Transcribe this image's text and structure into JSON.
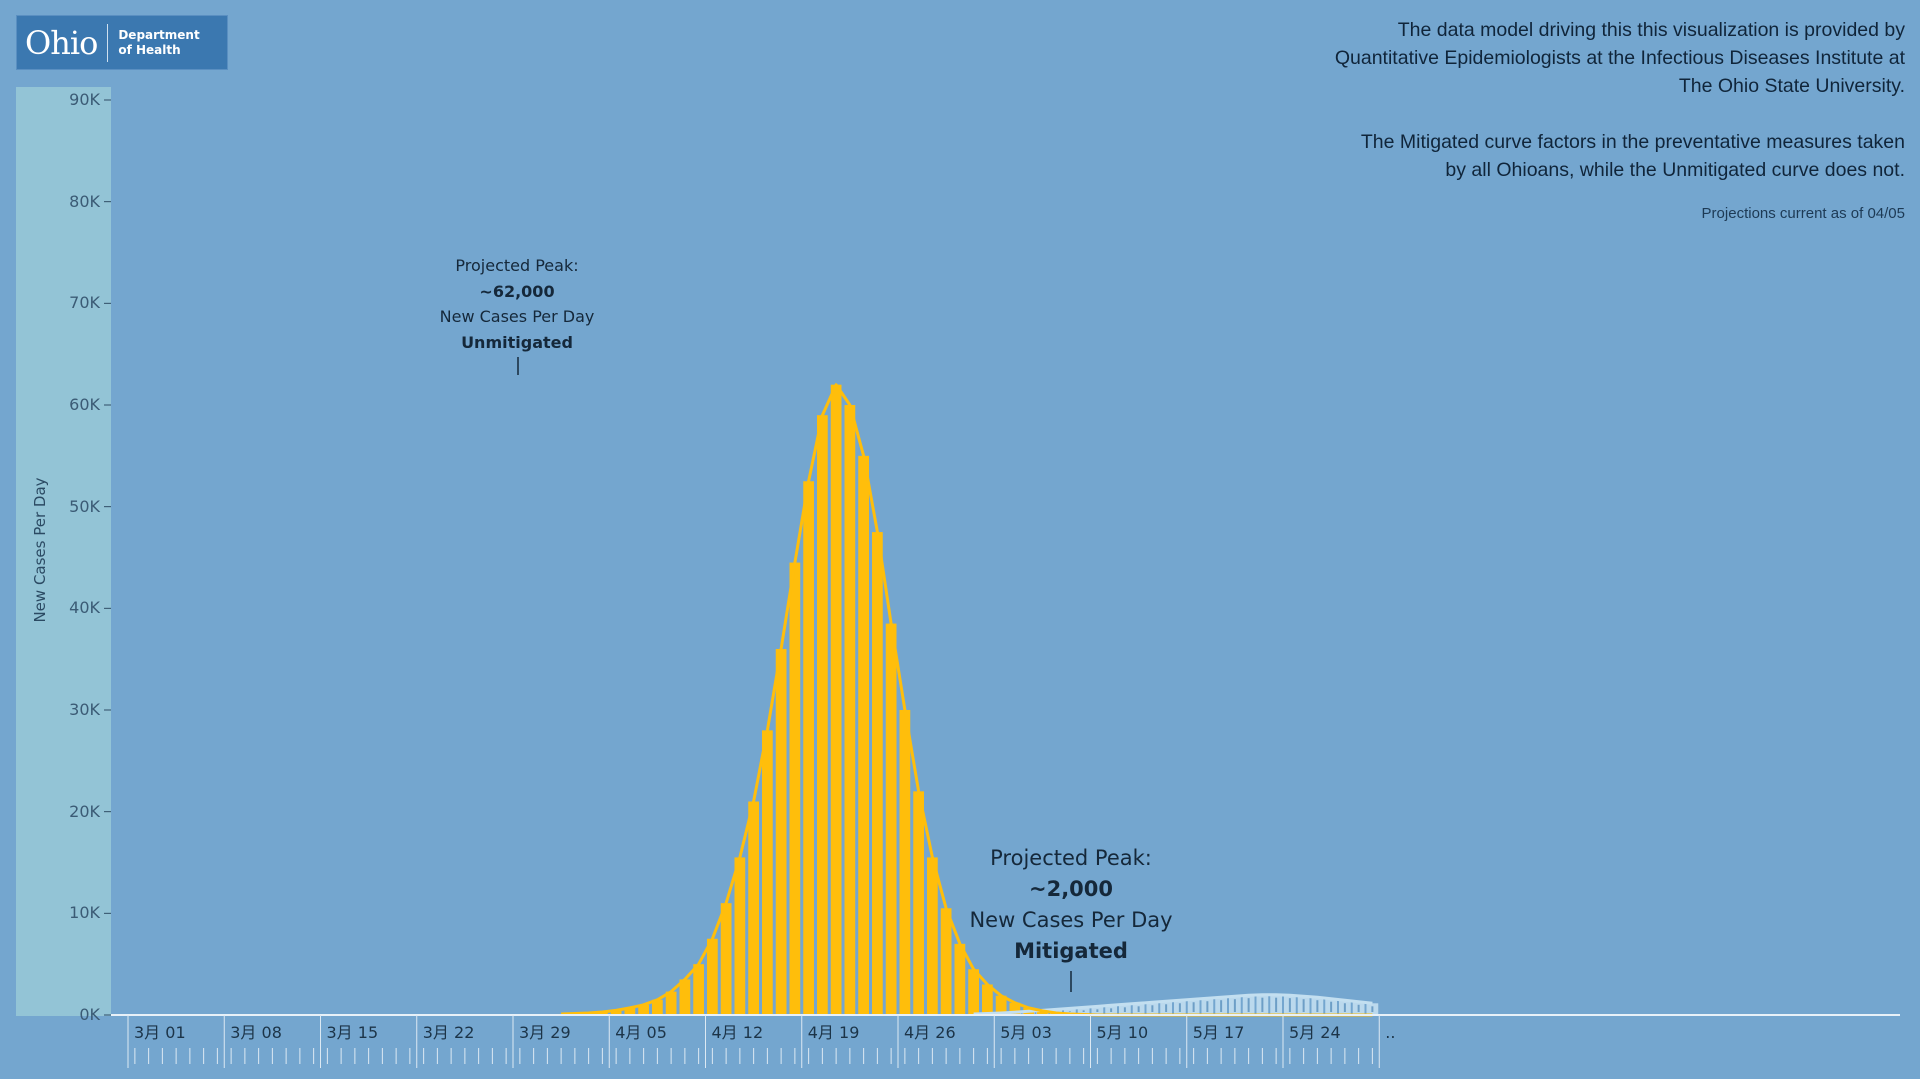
{
  "logo": {
    "word": "Ohio",
    "dept_line1": "Department",
    "dept_line2": "of Health"
  },
  "info": {
    "line1": "The data model driving this this visualization is provided by",
    "line2": "Quantitative Epidemiologists at the Infectious Diseases Institute at",
    "line3": "The Ohio State University.",
    "line4": "The Mitigated curve factors in the preventative measures taken",
    "line5": "by all Ohioans, while the Unmitigated curve does not.",
    "projections": "Projections current as of 04/05"
  },
  "annotations": {
    "unmitigated": {
      "title": "Projected Peak:",
      "value": "~62,000",
      "unit": "New Cases Per Day",
      "label": "Unmitigated"
    },
    "mitigated": {
      "title": "Projected Peak:",
      "value": "~2,000",
      "unit": "New Cases Per Day",
      "label": "Mitigated"
    }
  },
  "colors": {
    "background": "#74a6cf",
    "axis_band": "#93c4d6",
    "unmitigated": "#ffbe0b",
    "mitigated": "#c3dff0"
  },
  "chart_data": {
    "type": "bar",
    "ylabel": "New Cases Per Day",
    "ylim": [
      0,
      90000
    ],
    "yticks": [
      "0K",
      "10K",
      "20K",
      "30K",
      "40K",
      "50K",
      "60K",
      "70K",
      "80K",
      "90K"
    ],
    "xtick_labels": [
      "3月 01",
      "3月 08",
      "3月 15",
      "3月 22",
      "3月 29",
      "4月 05",
      "4月 12",
      "4月 19",
      "4月 26",
      "5月 03",
      "5月 10",
      "5月 17",
      "5月 24",
      ".."
    ],
    "x_start": "3月 01",
    "x_days": 91,
    "grid": false,
    "series": [
      {
        "name": "Unmitigated",
        "values": [
          0,
          0,
          0,
          0,
          0,
          0,
          0,
          0,
          0,
          0,
          0,
          0,
          0,
          0,
          0,
          0,
          0,
          0,
          0,
          0,
          0,
          0,
          0,
          0,
          0,
          0,
          0,
          0,
          0,
          0,
          0,
          100,
          150,
          200,
          300,
          450,
          700,
          1000,
          1500,
          2300,
          3500,
          5000,
          7500,
          11000,
          15500,
          21000,
          28000,
          36000,
          44500,
          52500,
          59000,
          62000,
          60000,
          55000,
          47500,
          38500,
          30000,
          22000,
          15500,
          10500,
          7000,
          4500,
          3000,
          1900,
          1200,
          700,
          400,
          200,
          100,
          50,
          0,
          0,
          0,
          0,
          0,
          0,
          0,
          0,
          0,
          0,
          0,
          0,
          0,
          0,
          0,
          0,
          0,
          0,
          0,
          0,
          0
        ]
      },
      {
        "name": "Mitigated",
        "values": [
          0,
          0,
          0,
          0,
          0,
          0,
          0,
          0,
          0,
          0,
          0,
          0,
          0,
          0,
          0,
          0,
          0,
          0,
          0,
          0,
          0,
          0,
          0,
          0,
          0,
          0,
          0,
          0,
          0,
          0,
          0,
          0,
          0,
          0,
          0,
          0,
          0,
          0,
          0,
          0,
          0,
          0,
          0,
          0,
          0,
          0,
          0,
          0,
          0,
          0,
          0,
          0,
          0,
          0,
          0,
          0,
          0,
          0,
          0,
          0,
          0,
          100,
          150,
          200,
          280,
          360,
          450,
          550,
          650,
          750,
          850,
          950,
          1050,
          1150,
          1250,
          1350,
          1450,
          1550,
          1650,
          1750,
          1850,
          1950,
          2000,
          2000,
          1950,
          1850,
          1750,
          1600,
          1450,
          1300,
          1150
        ]
      }
    ]
  }
}
